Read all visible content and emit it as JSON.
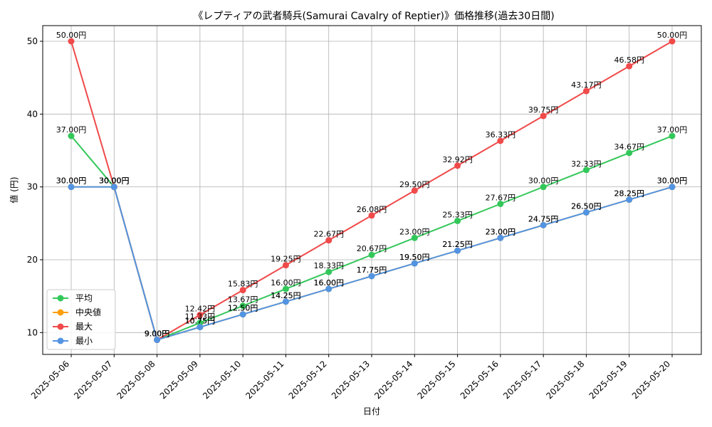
{
  "chart_data": {
    "type": "line",
    "title": "《レプティアの武者騎兵(Samurai Cavalry of Reptier)》価格推移(過去30日間)",
    "xlabel": "日付",
    "ylabel": "値 (円)",
    "categories": [
      "2025-05-06",
      "2025-05-07",
      "2025-05-08",
      "2025-05-09",
      "2025-05-10",
      "2025-05-11",
      "2025-05-12",
      "2025-05-13",
      "2025-05-14",
      "2025-05-15",
      "2025-05-16",
      "2025-05-17",
      "2025-05-18",
      "2025-05-19",
      "2025-05-20"
    ],
    "yticks": [
      10,
      20,
      30,
      40,
      50
    ],
    "ylim": [
      7,
      52.15
    ],
    "grid": true,
    "legend_position": "lower-left",
    "value_suffix": "円",
    "series": [
      {
        "name": "平均",
        "color": "#33c75a",
        "values": [
          37.0,
          30.0,
          9.0,
          11.33,
          13.67,
          16.0,
          18.33,
          20.67,
          23.0,
          25.33,
          27.67,
          30.0,
          32.33,
          34.67,
          37.0
        ]
      },
      {
        "name": "中央値",
        "color": "#ff9f0a",
        "values": [
          30.0,
          30.0,
          9.0,
          10.75,
          12.5,
          14.25,
          16.0,
          17.75,
          19.5,
          21.25,
          23.0,
          24.75,
          26.5,
          28.25,
          30.0
        ]
      },
      {
        "name": "最大",
        "color": "#f04a4a",
        "values": [
          50.0,
          30.0,
          9.0,
          12.42,
          15.83,
          19.25,
          22.67,
          26.08,
          29.5,
          32.92,
          36.33,
          39.75,
          43.17,
          46.58,
          50.0
        ]
      },
      {
        "name": "最小",
        "color": "#5294e2",
        "values": [
          30.0,
          30.0,
          9.0,
          10.75,
          12.5,
          14.25,
          16.0,
          17.75,
          19.5,
          21.25,
          23.0,
          24.75,
          26.5,
          28.25,
          30.0
        ]
      }
    ]
  }
}
